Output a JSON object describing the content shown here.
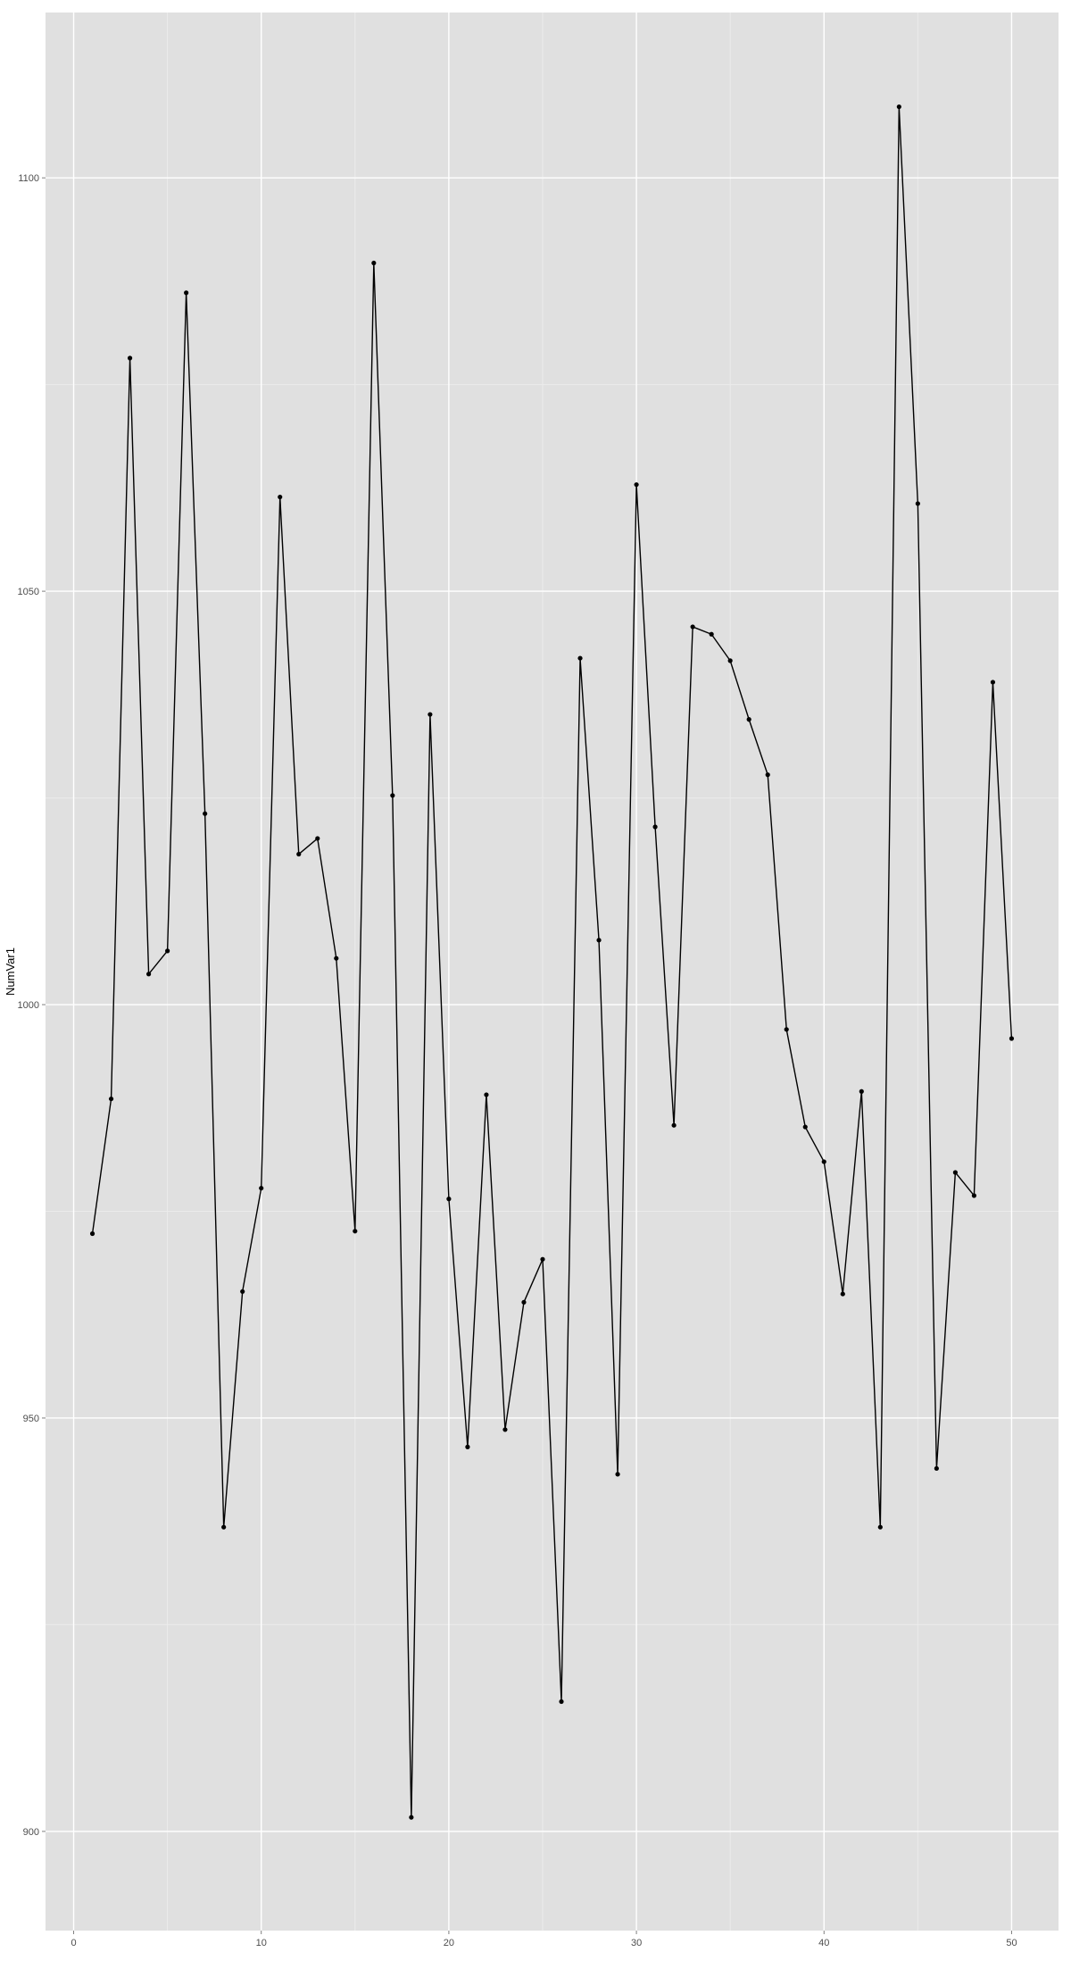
{
  "chart_data": {
    "type": "line",
    "markers": true,
    "title": "",
    "xlabel": "",
    "ylabel": "NumVar1",
    "xlim": [
      -1.5,
      52.5
    ],
    "ylim": [
      888,
      1120
    ],
    "x_ticks": [
      0,
      10,
      20,
      30,
      40,
      50
    ],
    "y_ticks": [
      900,
      950,
      1000,
      1050,
      1100
    ],
    "x_tick_labels": [
      "0",
      "10",
      "20",
      "30",
      "40",
      "50"
    ],
    "y_tick_labels": [
      "900",
      "950",
      "1000",
      "1050",
      "1100"
    ],
    "grid": true,
    "legend": "none",
    "colors": {
      "panel": "#e0e0e0",
      "grid_major": "#ffffff",
      "grid_minor": "#ebebeb",
      "line": "#000000",
      "tick_label": "#4d4d4d"
    },
    "series": [
      {
        "x": [
          1,
          2,
          3,
          4,
          5,
          6,
          7,
          8,
          9,
          10,
          11,
          12,
          13,
          14,
          15,
          16,
          17,
          18,
          19,
          20,
          21,
          22,
          23,
          24,
          25,
          26,
          27,
          28,
          29,
          30,
          31,
          32,
          33,
          34,
          35,
          36,
          37,
          38,
          39,
          40,
          41,
          42,
          43,
          44,
          45,
          46,
          47,
          48,
          49,
          50
        ],
        "values": [
          972.3,
          988.6,
          1078.2,
          1003.7,
          1006.5,
          1086.1,
          1023.1,
          936.8,
          965.3,
          977.8,
          1061.4,
          1018.2,
          1020.1,
          1005.6,
          972.6,
          1089.7,
          1025.3,
          901.7,
          1035.1,
          976.5,
          946.5,
          989.1,
          948.6,
          964.0,
          969.2,
          915.7,
          1041.9,
          1007.8,
          943.2,
          1062.9,
          1021.5,
          985.4,
          1045.7,
          1044.8,
          1041.6,
          1034.5,
          1027.8,
          997.0,
          985.2,
          981.0,
          965.0,
          989.5,
          936.8,
          1108.6,
          1060.6,
          943.9,
          979.7,
          976.9,
          1039.0,
          995.9
        ]
      }
    ]
  }
}
